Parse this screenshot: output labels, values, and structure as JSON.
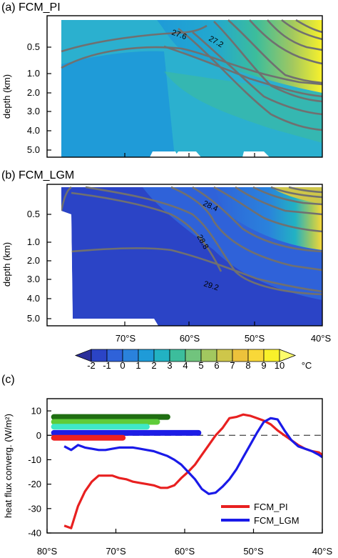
{
  "figure": {
    "unit": "°C",
    "panel_a": {
      "title": "(a) FCM_PI"
    },
    "panel_b": {
      "title": "(b) FCM_LGM"
    },
    "panel_c": {
      "title": "(c)"
    }
  },
  "chart_data": [
    {
      "type": "heatmap",
      "title": "(a) FCM_PI",
      "ylabel": "depth (km)",
      "y_ticks": [
        "0.5",
        "1.0",
        "2.0",
        "3.0",
        "4.0",
        "5.0"
      ],
      "x_ticks": [],
      "contour_labels": [
        "27.6",
        "27.2"
      ],
      "colorscale": "temperature"
    },
    {
      "type": "heatmap",
      "title": "(b) FCM_LGM",
      "ylabel": "depth (km)",
      "y_ticks": [
        "0.5",
        "1.0",
        "2.0",
        "3.0",
        "4.0",
        "5.0"
      ],
      "x_ticks": [
        "70°S",
        "60°S",
        "50°S",
        "40°S"
      ],
      "contour_labels": [
        "28.4",
        "28.8",
        "29.2"
      ],
      "colorscale": "temperature"
    },
    {
      "type": "colorbar",
      "labels": [
        "-2",
        "-1",
        "0",
        "1",
        "2",
        "3",
        "4",
        "5",
        "6",
        "7",
        "8",
        "9",
        "10"
      ],
      "unit": "°C",
      "colors": [
        "#2b2f9a",
        "#2b44c6",
        "#2f62d9",
        "#2a82dc",
        "#1f9bd8",
        "#22b2c3",
        "#3cbd9c",
        "#71c47d",
        "#a2c85f",
        "#cec64a",
        "#edc23b",
        "#f9d838",
        "#f9f12a",
        "#fdfd6b"
      ]
    },
    {
      "type": "line",
      "title": "(c)",
      "ylabel": "heat flux converg. (W/m²)",
      "x_ticks": [
        "80°S",
        "70°S",
        "60°S",
        "50°S",
        "40°S"
      ],
      "y_ticks": [
        "10",
        "0",
        "-10",
        "-20",
        "-30",
        "-40"
      ],
      "xlim": [
        -80,
        -40
      ],
      "ylim": [
        -40,
        15
      ],
      "series": [
        {
          "name": "FCM_PI",
          "color": "#e82020",
          "x": [
            -77.5,
            -76.5,
            -75.5,
            -74.5,
            -73.5,
            -72.5,
            -71.5,
            -70.5,
            -69.5,
            -68.5,
            -67.5,
            -66.5,
            -65.5,
            -64.5,
            -63.5,
            -62.5,
            -61.5,
            -60.5,
            -59.5,
            -58.5,
            -57.5,
            -56.5,
            -55.5,
            -54.5,
            -53.5,
            -52.5,
            -51.5,
            -50.5,
            -49.5,
            -48.5,
            -47.5,
            -46.5,
            -45.5,
            -44.5,
            -43.5,
            -42.5,
            -41.5,
            -40.5,
            -40
          ],
          "y": [
            -37,
            -38,
            -29,
            -23,
            -19,
            -16.5,
            -16.5,
            -16.5,
            -17.5,
            -18,
            -19,
            -19.5,
            -20,
            -20.5,
            -21.5,
            -21.5,
            -20.5,
            -17.5,
            -15,
            -12,
            -8,
            -4,
            0,
            3,
            7,
            7.5,
            8.5,
            8,
            7,
            6,
            4.5,
            2,
            0,
            -2,
            -4,
            -5.5,
            -6.5,
            -7,
            -8
          ]
        },
        {
          "name": "FCM_LGM",
          "color": "#1a1ae8",
          "x": [
            -77.5,
            -76.5,
            -75.5,
            -74.5,
            -73.5,
            -72.5,
            -71.5,
            -70.5,
            -69.5,
            -68.5,
            -67.5,
            -66.5,
            -65.5,
            -64.5,
            -63.5,
            -62.5,
            -61.5,
            -60.5,
            -59.5,
            -58.5,
            -57.5,
            -56.5,
            -55.5,
            -54.5,
            -53.5,
            -52.5,
            -51.5,
            -50.5,
            -49.5,
            -48.5,
            -47.5,
            -46.5,
            -45.5,
            -44.5,
            -43.5,
            -42.5,
            -41.5,
            -40.5,
            -40
          ],
          "y": [
            -4.5,
            -6,
            -4,
            -5,
            -5.5,
            -6,
            -6,
            -5.5,
            -5,
            -5,
            -5,
            -5.5,
            -6,
            -6.5,
            -7.5,
            -8.5,
            -10,
            -12,
            -15,
            -18,
            -22,
            -24,
            -23.5,
            -21,
            -18,
            -14,
            -9,
            -4,
            1,
            5.5,
            7,
            6.5,
            2,
            -2,
            -4.5,
            -5.5,
            -6.5,
            -8,
            -9
          ]
        }
      ],
      "bars": [
        {
          "color": "#1f6e12",
          "x_start": -79,
          "x_end": -62.5,
          "y": 7.5
        },
        {
          "color": "#5fcc39",
          "x_start": -79,
          "x_end": -64,
          "y": 5.5
        },
        {
          "color": "#3fe8c8",
          "x_start": -79,
          "x_end": -65.5,
          "y": 3.5
        },
        {
          "color": "#1d1de6",
          "x_start": -79,
          "x_end": -58,
          "y": 1.0
        },
        {
          "color": "#ee2020",
          "x_start": -79,
          "x_end": -69,
          "y": -1.0
        }
      ]
    }
  ]
}
